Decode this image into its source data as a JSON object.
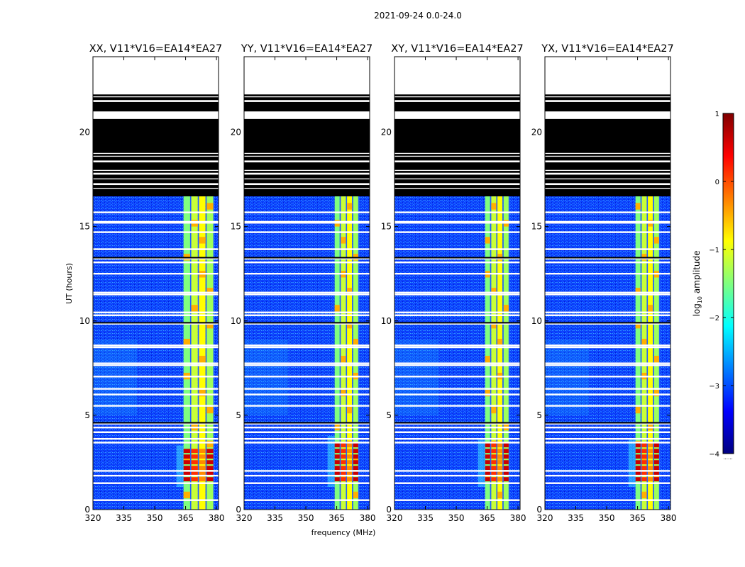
{
  "figure": {
    "suptitle": "2021-09-24 0.0-24.0",
    "xlabel": "frequency (MHz)",
    "ylabel": "UT (hours)"
  },
  "colorbar": {
    "label": "log",
    "label_sub": "10",
    "label_rest": " amplitude",
    "ticks": [
      1,
      0,
      -1,
      -2,
      -3,
      -4
    ],
    "range": [
      -4,
      1
    ],
    "stops": [
      "#00007f",
      "#0000ff",
      "#007fff",
      "#00ffff",
      "#7fff7f",
      "#ffff00",
      "#ff7f00",
      "#ff0000",
      "#7f0000"
    ],
    "footnote": "......"
  },
  "chart_data": [
    {
      "type": "heatmap",
      "title": "XX, V11*V16=EA14*EA27",
      "xlim": [
        320,
        381
      ],
      "xticks": [
        320,
        335,
        350,
        365,
        380
      ],
      "ylim": [
        0,
        24
      ],
      "yticks": [
        0,
        5,
        10,
        15,
        20
      ],
      "band_mhz": [
        364,
        379
      ],
      "peak_hours": [
        1.5,
        3.0
      ]
    },
    {
      "type": "heatmap",
      "title": "YY, V11*V16=EA14*EA27",
      "xlim": [
        320,
        381
      ],
      "xticks": [
        320,
        335,
        350,
        365,
        380
      ],
      "ylim": [
        0,
        24
      ],
      "yticks": [
        0,
        5,
        10,
        15,
        20
      ],
      "band_mhz": [
        364,
        376
      ],
      "peak_hours": [
        1.5,
        3.5
      ]
    },
    {
      "type": "heatmap",
      "title": "XY, V11*V16=EA14*EA27",
      "xlim": [
        320,
        381
      ],
      "xticks": [
        320,
        335,
        350,
        365,
        380
      ],
      "ylim": [
        0,
        24
      ],
      "yticks": [
        0,
        5,
        10,
        15,
        20
      ],
      "band_mhz": [
        364,
        376
      ],
      "peak_hours": [
        1.5,
        3.3
      ]
    },
    {
      "type": "heatmap",
      "title": "YX, V11*V16=EA14*EA27",
      "xlim": [
        320,
        381
      ],
      "xticks": [
        320,
        335,
        350,
        365,
        380
      ],
      "ylim": [
        0,
        24
      ],
      "yticks": [
        0,
        5,
        10,
        15,
        20
      ],
      "band_mhz": [
        364,
        376
      ],
      "peak_hours": [
        1.5,
        3.3
      ]
    }
  ],
  "observation": {
    "data_end_hour": 16.6,
    "flagged_hours": [
      0.5,
      1.4,
      1.8,
      2.05,
      3.55,
      3.75,
      4.1,
      4.35,
      4.55,
      5.5,
      6.1,
      6.4,
      7.05,
      7.65,
      7.75,
      8.6,
      8.7,
      9.85,
      10.3,
      10.45,
      11.4,
      11.5,
      12.5,
      13.1,
      13.3,
      13.8,
      14.7,
      15.2,
      15.25,
      15.75
    ],
    "dark_hours": [
      4.6,
      9.9,
      13.35
    ],
    "black_blocks": [
      [
        16.6,
        17.0
      ],
      [
        17.05,
        17.2
      ],
      [
        17.3,
        17.5
      ],
      [
        17.55,
        17.75
      ],
      [
        17.85,
        17.95
      ],
      [
        18.0,
        18.4
      ],
      [
        18.5,
        18.7
      ],
      [
        18.75,
        18.85
      ],
      [
        18.9,
        20.7
      ],
      [
        21.1,
        21.6
      ],
      [
        21.7,
        21.85
      ],
      [
        21.9,
        22.0
      ]
    ]
  }
}
